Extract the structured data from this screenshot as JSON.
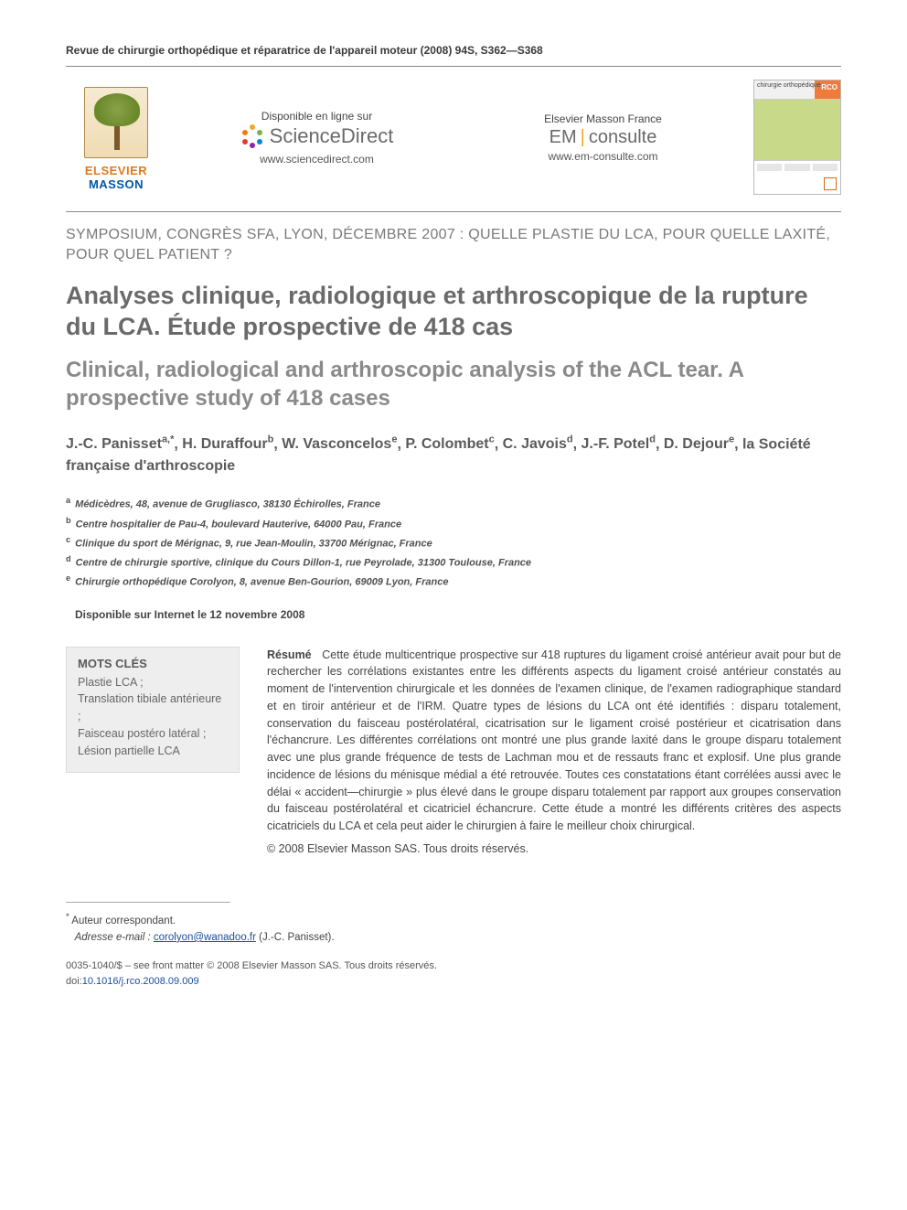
{
  "running_head": "Revue de chirurgie orthopédique et réparatrice de l'appareil moteur (2008) 94S, S362—S368",
  "banner": {
    "publisher_top": "ELSEVIER",
    "publisher_bottom": "MASSON",
    "sd_avail": "Disponible en ligne sur",
    "sd_name": "ScienceDirect",
    "sd_url": "www.sciencedirect.com",
    "em_head": "Elsevier Masson France",
    "em_name_left": "EM",
    "em_name_right": "consulte",
    "em_url": "www.em-consulte.com",
    "cover_label": "chirurgie orthopédique"
  },
  "section_label": "SYMPOSIUM, CONGRÈS SFA, LYON, DÉCEMBRE 2007 : QUELLE PLASTIE DU LCA, POUR QUELLE LAXITÉ, POUR QUEL PATIENT ?",
  "title_fr": "Analyses clinique, radiologique et arthroscopique de la rupture du LCA. Étude prospective de 418 cas",
  "title_en": "Clinical, radiological and arthroscopic analysis of the ACL tear. A prospective study of 418 cases",
  "authors_line": "J.-C. Panisset^a,*, H. Duraffour^b, W. Vasconcelos^e, P. Colombet^c, C. Javois^d, J.-F. Potel^d, D. Dejour^e, la Société française d'arthroscopie",
  "authors": [
    {
      "name": "J.-C. Panisset",
      "aff": "a,*"
    },
    {
      "name": "H. Duraffour",
      "aff": "b"
    },
    {
      "name": "W. Vasconcelos",
      "aff": "e"
    },
    {
      "name": "P. Colombet",
      "aff": "c"
    },
    {
      "name": "C. Javois",
      "aff": "d"
    },
    {
      "name": "J.-F. Potel",
      "aff": "d"
    },
    {
      "name": "D. Dejour",
      "aff": "e"
    },
    {
      "name": "la Société française d'arthroscopie",
      "aff": ""
    }
  ],
  "affiliations": [
    {
      "key": "a",
      "text": "Médicèdres, 48, avenue de Grugliasco, 38130 Échirolles, France"
    },
    {
      "key": "b",
      "text": "Centre hospitalier de Pau-4, boulevard Hauterive, 64000 Pau, France"
    },
    {
      "key": "c",
      "text": "Clinique du sport de Mérignac, 9, rue Jean-Moulin, 33700 Mérignac, France"
    },
    {
      "key": "d",
      "text": "Centre de chirurgie sportive, clinique du Cours Dillon-1, rue Peyrolade, 31300 Toulouse, France"
    },
    {
      "key": "e",
      "text": "Chirurgie orthopédique Corolyon, 8, avenue Ben-Gourion, 69009 Lyon, France"
    }
  ],
  "online_date": "Disponible sur Internet le 12 novembre 2008",
  "keywords": {
    "head": "MOTS CLÉS",
    "items": "Plastie LCA ;\nTranslation tibiale antérieure ;\nFaisceau postéro latéral ;\nLésion partielle LCA"
  },
  "abstract": {
    "label": "Résumé",
    "body": "Cette étude multicentrique prospective sur 418 ruptures du ligament croisé antérieur avait pour but de rechercher les corrélations existantes entre les différents aspects du ligament croisé antérieur constatés au moment de l'intervention chirurgicale et les données de l'examen clinique, de l'examen radiographique standard et en tiroir antérieur et de l'IRM. Quatre types de lésions du LCA ont été identifiés : disparu totalement, conservation du faisceau postérolatéral, cicatrisation sur le ligament croisé postérieur et cicatrisation dans l'échancrure. Les différentes corrélations ont montré une plus grande laxité dans le groupe disparu totalement avec une plus grande fréquence de tests de Lachman mou et de ressauts franc et explosif. Une plus grande incidence de lésions du ménisque médial a été retrouvée. Toutes ces constatations étant corrélées aussi avec le délai « accident—chirurgie » plus élevé dans le groupe disparu totalement par rapport aux groupes conservation du faisceau postérolatéral et cicatriciel échancrure. Cette étude a montré les différents critères des aspects cicatriciels du LCA et cela peut aider le chirurgien à faire le meilleur choix chirurgical.",
    "copyright": "© 2008 Elsevier Masson SAS. Tous droits réservés."
  },
  "footnotes": {
    "corr_mark": "*",
    "corr_text": "Auteur correspondant.",
    "email_label": "Adresse e-mail :",
    "email": "corolyon@wanadoo.fr",
    "email_author": "(J.-C. Panisset)."
  },
  "footer": {
    "line": "0035-1040/$ – see front matter © 2008 Elsevier Masson SAS. Tous droits réservés.",
    "doi_label": "doi:",
    "doi": "10.1016/j.rco.2008.09.009"
  },
  "colors": {
    "text": "#3a3a3a",
    "title_grey": "#6a6a6a",
    "subtitle_grey": "#8a8a8a",
    "link": "#1a4fa3",
    "box_bg": "#eeeeee",
    "elsevier_orange": "#e07a1f",
    "masson_blue": "#0058a6"
  }
}
